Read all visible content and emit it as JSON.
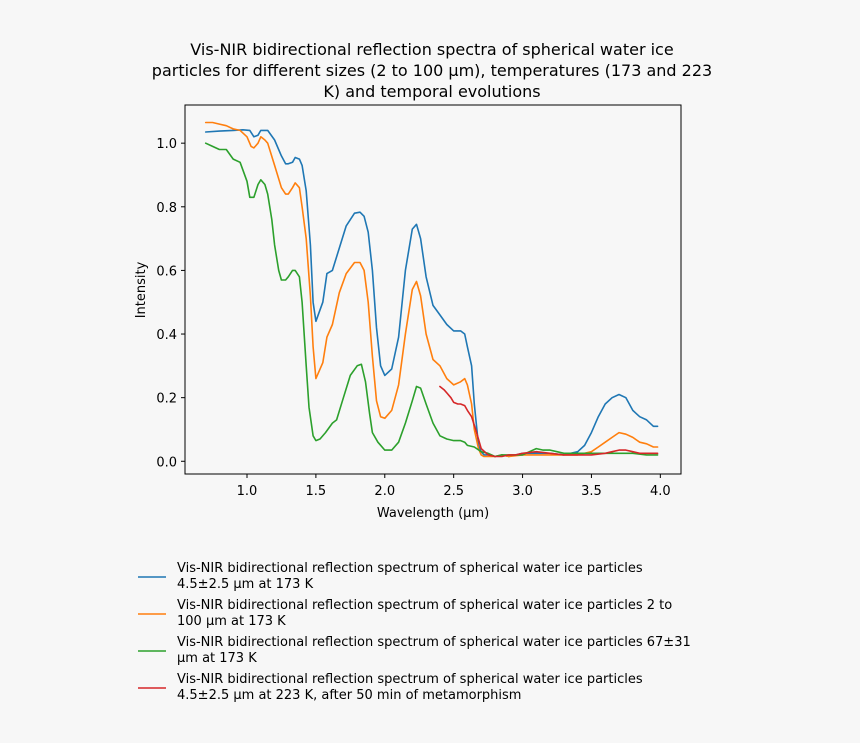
{
  "chart_data": {
    "type": "line",
    "title": "Vis-NIR bidirectional reflection spectra of spherical water ice particles for different sizes (2 to 100 µm), temperatures (173 and 223 K) and temporal evolutions",
    "title_lines": [
      "Vis-NIR bidirectional reflection spectra of spherical water ice",
      "particles for different sizes (2 to 100 µm), temperatures (173 and 223",
      "K) and temporal evolutions"
    ],
    "xlabel": "Wavelength (μm)",
    "ylabel": "Intensity",
    "xlim": [
      0.55,
      4.15
    ],
    "ylim": [
      -0.04,
      1.12
    ],
    "xticks": [
      1.0,
      1.5,
      2.0,
      2.5,
      3.0,
      3.5,
      4.0
    ],
    "xtick_labels": [
      "1.0",
      "1.5",
      "2.0",
      "2.5",
      "3.0",
      "3.5",
      "4.0"
    ],
    "yticks": [
      0.0,
      0.2,
      0.4,
      0.6,
      0.8,
      1.0
    ],
    "ytick_labels": [
      "0.0",
      "0.2",
      "0.4",
      "0.6",
      "0.8",
      "1.0"
    ],
    "grid": false,
    "legend_placement": "below",
    "series": [
      {
        "name": "Vis-NIR bidirectional reflection spectrum of spherical water ice particles 4.5±2.5 µm at 173 K",
        "legend_lines": [
          "Vis-NIR bidirectional reflection spectrum of spherical water ice particles",
          "4.5±2.5 µm at 173 K"
        ],
        "color": "#1f77b4",
        "x": [
          0.7,
          0.8,
          0.9,
          0.97,
          1.02,
          1.05,
          1.08,
          1.1,
          1.15,
          1.2,
          1.25,
          1.28,
          1.3,
          1.33,
          1.35,
          1.38,
          1.4,
          1.43,
          1.46,
          1.48,
          1.5,
          1.55,
          1.58,
          1.62,
          1.67,
          1.72,
          1.78,
          1.82,
          1.85,
          1.88,
          1.91,
          1.94,
          1.97,
          2.0,
          2.05,
          2.1,
          2.15,
          2.2,
          2.23,
          2.26,
          2.3,
          2.35,
          2.4,
          2.45,
          2.5,
          2.55,
          2.58,
          2.6,
          2.63,
          2.65,
          2.68,
          2.7,
          2.72,
          2.75,
          2.8,
          2.85,
          2.9,
          2.95,
          3.0,
          3.1,
          3.2,
          3.3,
          3.4,
          3.45,
          3.5,
          3.55,
          3.6,
          3.65,
          3.7,
          3.75,
          3.8,
          3.85,
          3.9,
          3.95,
          3.98
        ],
        "values": [
          1.035,
          1.038,
          1.04,
          1.042,
          1.04,
          1.02,
          1.025,
          1.04,
          1.04,
          1.01,
          0.96,
          0.935,
          0.935,
          0.94,
          0.955,
          0.95,
          0.93,
          0.85,
          0.68,
          0.5,
          0.44,
          0.5,
          0.59,
          0.6,
          0.67,
          0.74,
          0.78,
          0.783,
          0.77,
          0.72,
          0.6,
          0.42,
          0.3,
          0.27,
          0.29,
          0.39,
          0.6,
          0.73,
          0.745,
          0.7,
          0.58,
          0.49,
          0.46,
          0.43,
          0.41,
          0.41,
          0.4,
          0.36,
          0.3,
          0.18,
          0.05,
          0.03,
          0.02,
          0.02,
          0.015,
          0.02,
          0.015,
          0.02,
          0.025,
          0.025,
          0.025,
          0.02,
          0.03,
          0.05,
          0.09,
          0.14,
          0.18,
          0.2,
          0.21,
          0.2,
          0.16,
          0.14,
          0.13,
          0.11,
          0.11
        ]
      },
      {
        "name": "Vis-NIR bidirectional reflection spectrum of spherical water ice particles 2 to 100 µm at 173 K",
        "legend_lines": [
          "Vis-NIR bidirectional reflection spectrum of spherical water ice particles 2 to",
          "100 µm at 173 K"
        ],
        "color": "#ff7f0e",
        "x": [
          0.7,
          0.75,
          0.8,
          0.85,
          0.9,
          0.95,
          1.0,
          1.03,
          1.05,
          1.08,
          1.1,
          1.13,
          1.15,
          1.2,
          1.25,
          1.28,
          1.3,
          1.33,
          1.35,
          1.38,
          1.4,
          1.43,
          1.46,
          1.48,
          1.5,
          1.55,
          1.58,
          1.62,
          1.67,
          1.72,
          1.78,
          1.82,
          1.85,
          1.88,
          1.91,
          1.94,
          1.97,
          2.0,
          2.05,
          2.1,
          2.15,
          2.2,
          2.23,
          2.26,
          2.3,
          2.35,
          2.4,
          2.45,
          2.5,
          2.55,
          2.58,
          2.6,
          2.63,
          2.65,
          2.68,
          2.7,
          2.72,
          2.75,
          2.8,
          2.85,
          2.9,
          3.0,
          3.1,
          3.2,
          3.3,
          3.4,
          3.45,
          3.5,
          3.55,
          3.6,
          3.65,
          3.7,
          3.75,
          3.8,
          3.85,
          3.9,
          3.95,
          3.98
        ],
        "values": [
          1.065,
          1.065,
          1.06,
          1.055,
          1.045,
          1.04,
          1.02,
          0.99,
          0.985,
          1.0,
          1.02,
          1.01,
          1.0,
          0.93,
          0.86,
          0.84,
          0.84,
          0.86,
          0.875,
          0.86,
          0.8,
          0.7,
          0.52,
          0.36,
          0.26,
          0.31,
          0.39,
          0.43,
          0.53,
          0.59,
          0.625,
          0.625,
          0.6,
          0.5,
          0.33,
          0.19,
          0.14,
          0.135,
          0.16,
          0.24,
          0.4,
          0.54,
          0.565,
          0.52,
          0.4,
          0.32,
          0.3,
          0.26,
          0.24,
          0.25,
          0.26,
          0.24,
          0.18,
          0.1,
          0.04,
          0.02,
          0.015,
          0.015,
          0.015,
          0.02,
          0.015,
          0.02,
          0.02,
          0.02,
          0.02,
          0.02,
          0.025,
          0.03,
          0.045,
          0.06,
          0.075,
          0.09,
          0.085,
          0.075,
          0.06,
          0.055,
          0.045,
          0.045
        ]
      },
      {
        "name": "Vis-NIR bidirectional reflection spectrum of spherical water ice particles 67±31 µm at 173 K",
        "legend_lines": [
          "Vis-NIR bidirectional reflection spectrum of spherical water ice particles 67±31",
          "µm at 173 K"
        ],
        "color": "#2ca02c",
        "x": [
          0.7,
          0.75,
          0.8,
          0.85,
          0.9,
          0.95,
          1.0,
          1.02,
          1.05,
          1.08,
          1.1,
          1.13,
          1.15,
          1.18,
          1.2,
          1.23,
          1.25,
          1.28,
          1.3,
          1.33,
          1.35,
          1.38,
          1.4,
          1.43,
          1.45,
          1.48,
          1.5,
          1.53,
          1.57,
          1.62,
          1.65,
          1.7,
          1.75,
          1.8,
          1.83,
          1.86,
          1.89,
          1.91,
          1.95,
          2.0,
          2.05,
          2.1,
          2.15,
          2.2,
          2.23,
          2.26,
          2.3,
          2.35,
          2.4,
          2.45,
          2.5,
          2.55,
          2.58,
          2.6,
          2.65,
          2.7,
          2.75,
          2.8,
          2.85,
          2.9,
          2.95,
          3.0,
          3.05,
          3.1,
          3.15,
          3.2,
          3.25,
          3.3,
          3.4,
          3.5,
          3.6,
          3.7,
          3.8,
          3.9,
          3.98
        ],
        "values": [
          1.0,
          0.99,
          0.98,
          0.98,
          0.95,
          0.94,
          0.88,
          0.83,
          0.83,
          0.87,
          0.885,
          0.87,
          0.84,
          0.76,
          0.68,
          0.6,
          0.57,
          0.57,
          0.58,
          0.6,
          0.6,
          0.58,
          0.5,
          0.3,
          0.17,
          0.08,
          0.065,
          0.07,
          0.09,
          0.12,
          0.13,
          0.2,
          0.27,
          0.3,
          0.305,
          0.25,
          0.15,
          0.09,
          0.06,
          0.035,
          0.035,
          0.06,
          0.12,
          0.19,
          0.235,
          0.23,
          0.18,
          0.12,
          0.08,
          0.07,
          0.065,
          0.065,
          0.06,
          0.05,
          0.045,
          0.03,
          0.025,
          0.015,
          0.02,
          0.02,
          0.02,
          0.02,
          0.03,
          0.04,
          0.035,
          0.035,
          0.03,
          0.025,
          0.025,
          0.025,
          0.025,
          0.025,
          0.025,
          0.02,
          0.02
        ]
      },
      {
        "name": "Vis-NIR bidirectional reflection spectrum of spherical water ice particles 4.5±2.5 µm at 223 K, after 50 min of metamorphism",
        "legend_lines": [
          "Vis-NIR bidirectional reflection spectrum of spherical water ice particles",
          "4.5±2.5 µm at 223 K, after 50 min of metamorphism"
        ],
        "color": "#d62728",
        "x": [
          2.4,
          2.43,
          2.45,
          2.48,
          2.5,
          2.53,
          2.55,
          2.58,
          2.6,
          2.63,
          2.66,
          2.7,
          2.75,
          2.8,
          2.85,
          2.9,
          2.95,
          3.0,
          3.1,
          3.2,
          3.3,
          3.4,
          3.5,
          3.6,
          3.65,
          3.7,
          3.75,
          3.8,
          3.85,
          3.9,
          3.95,
          3.98
        ],
        "values": [
          0.235,
          0.225,
          0.215,
          0.2,
          0.185,
          0.18,
          0.18,
          0.175,
          0.16,
          0.14,
          0.1,
          0.04,
          0.02,
          0.015,
          0.015,
          0.02,
          0.02,
          0.025,
          0.03,
          0.025,
          0.02,
          0.02,
          0.02,
          0.025,
          0.03,
          0.035,
          0.035,
          0.03,
          0.025,
          0.025,
          0.025,
          0.025
        ]
      }
    ]
  }
}
